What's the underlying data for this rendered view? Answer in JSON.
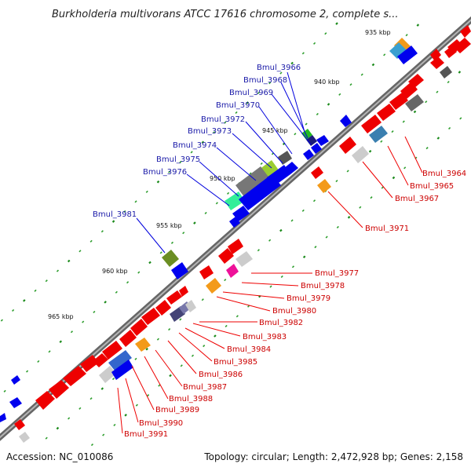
{
  "title": "Burkholderia multivorans ATCC 17616 chromosome 2, complete s...",
  "footer": {
    "accession": "Accession: NC_010086",
    "summary": "Topology: circular; Length: 2,472,928 bp; Genes: 2,158"
  },
  "ticks": [
    "935 kbp",
    "940 kbp",
    "945 kbp",
    "950 kbp",
    "955 kbp",
    "960 kbp",
    "965 kbp"
  ],
  "genes_outer": [
    "Bmul_3966",
    "Bmul_3968",
    "Bmul_3969",
    "Bmul_3970",
    "Bmul_3972",
    "Bmul_3973",
    "Bmul_3974",
    "Bmul_3975",
    "Bmul_3976",
    "Bmul_3981"
  ],
  "genes_inner": [
    "Bmul_3964",
    "Bmul_3965",
    "Bmul_3967",
    "Bmul_3971",
    "Bmul_3977",
    "Bmul_3978",
    "Bmul_3979",
    "Bmul_3980",
    "Bmul_3982",
    "Bmul_3983",
    "Bmul_3984",
    "Bmul_3985",
    "Bmul_3986",
    "Bmul_3987",
    "Bmul_3988",
    "Bmul_3989",
    "Bmul_3990",
    "Bmul_3991"
  ],
  "colors": {
    "backbone": "#888888",
    "forward_gene": "#0000ee",
    "reverse_gene": "#ee0000",
    "outer_label": "#1a1aa8",
    "inner_label": "#cc0000",
    "tick": "#1a8a1a"
  }
}
